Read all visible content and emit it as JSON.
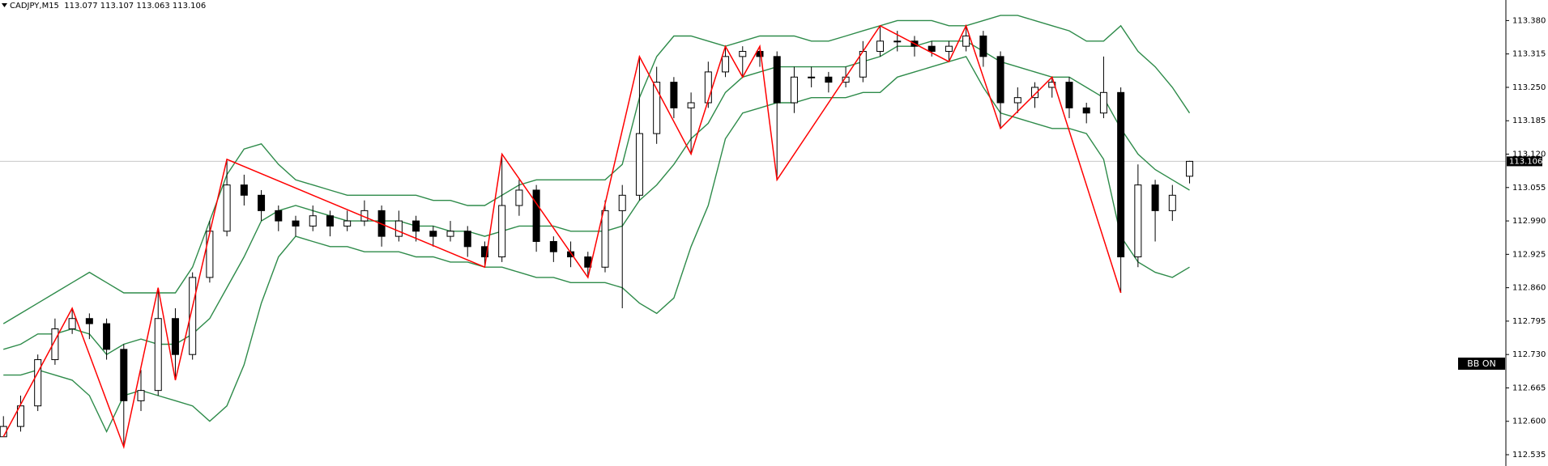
{
  "chart_data": {
    "type": "candlestick",
    "title": "CADJPY,M15  113.077 113.107 113.063 113.106",
    "button": "BB ON",
    "xlim": [
      -0.2,
      87.4
    ],
    "ylim": [
      112.513,
      113.42
    ],
    "yticks": [
      {
        "value": 113.38,
        "label": "113.380"
      },
      {
        "value": 113.315,
        "label": "113.315"
      },
      {
        "value": 113.25,
        "label": "113.250"
      },
      {
        "value": 113.185,
        "label": "113.185"
      },
      {
        "value": 113.12,
        "label": "113.120"
      },
      {
        "value": 113.055,
        "label": "113.055"
      },
      {
        "value": 112.99,
        "label": "112.990"
      },
      {
        "value": 112.925,
        "label": "112.925"
      },
      {
        "value": 112.86,
        "label": "112.860"
      },
      {
        "value": 112.795,
        "label": "112.795"
      },
      {
        "value": 112.73,
        "label": "112.730"
      },
      {
        "value": 112.665,
        "label": "112.665"
      },
      {
        "value": 112.6,
        "label": "112.600"
      },
      {
        "value": 112.535,
        "label": "112.535"
      }
    ],
    "current_price": 113.106,
    "open": [
      112.57,
      112.59,
      112.63,
      112.72,
      112.78,
      112.8,
      112.79,
      112.74,
      112.64,
      112.66,
      112.8,
      112.73,
      112.88,
      112.97,
      113.06,
      113.04,
      113.01,
      112.99,
      112.98,
      113.0,
      112.98,
      112.99,
      113.01,
      112.96,
      112.99,
      112.97,
      112.96,
      112.97,
      112.94,
      112.92,
      113.02,
      113.05,
      112.95,
      112.93,
      112.92,
      112.9,
      113.01,
      113.04,
      113.16,
      113.26,
      113.21,
      113.22,
      113.28,
      113.31,
      113.32,
      113.31,
      113.22,
      113.27,
      113.27,
      113.26,
      113.27,
      113.32,
      113.34,
      113.34,
      113.33,
      113.32,
      113.33,
      113.35,
      113.31,
      113.22,
      113.23,
      113.25,
      113.26,
      113.21,
      113.2,
      113.24,
      112.92,
      113.06,
      113.01,
      113.077
    ],
    "high": [
      112.61,
      112.65,
      112.73,
      112.8,
      112.82,
      112.81,
      112.8,
      112.75,
      112.7,
      112.86,
      112.82,
      112.89,
      112.99,
      113.11,
      113.08,
      113.05,
      113.02,
      113.0,
      113.02,
      113.01,
      113.01,
      113.03,
      113.02,
      113.01,
      113.0,
      112.98,
      112.99,
      112.98,
      112.95,
      113.12,
      113.07,
      113.06,
      112.96,
      112.95,
      112.93,
      113.03,
      113.06,
      113.31,
      113.29,
      113.27,
      113.24,
      113.3,
      113.33,
      113.33,
      113.33,
      113.32,
      113.29,
      113.29,
      113.28,
      113.29,
      113.34,
      113.37,
      113.36,
      113.35,
      113.34,
      113.34,
      113.37,
      113.36,
      113.32,
      113.25,
      113.26,
      113.27,
      113.27,
      113.22,
      113.31,
      113.25,
      113.1,
      113.07,
      113.06,
      113.107
    ],
    "low": [
      112.57,
      112.58,
      112.62,
      112.71,
      112.77,
      112.76,
      112.72,
      112.55,
      112.62,
      112.65,
      112.68,
      112.72,
      112.87,
      112.96,
      113.02,
      112.99,
      112.97,
      112.96,
      112.97,
      112.96,
      112.97,
      112.98,
      112.94,
      112.95,
      112.95,
      112.94,
      112.95,
      112.92,
      112.9,
      112.91,
      113.0,
      112.93,
      112.91,
      112.9,
      112.88,
      112.89,
      112.82,
      113.03,
      113.14,
      113.19,
      113.12,
      113.21,
      113.27,
      113.27,
      113.29,
      113.07,
      113.2,
      113.25,
      113.24,
      113.25,
      113.26,
      113.31,
      113.32,
      113.31,
      113.31,
      113.3,
      113.32,
      113.29,
      113.17,
      113.2,
      113.21,
      113.23,
      113.19,
      113.18,
      113.19,
      112.85,
      112.9,
      112.95,
      112.99,
      113.063
    ],
    "close": [
      112.59,
      112.63,
      112.72,
      112.78,
      112.8,
      112.79,
      112.74,
      112.64,
      112.66,
      112.8,
      112.73,
      112.88,
      112.97,
      113.06,
      113.04,
      113.01,
      112.99,
      112.98,
      113.0,
      112.98,
      112.99,
      113.01,
      112.96,
      112.99,
      112.97,
      112.96,
      112.97,
      112.94,
      112.92,
      113.02,
      113.05,
      112.95,
      112.93,
      112.92,
      112.9,
      113.01,
      113.04,
      113.16,
      113.26,
      113.21,
      113.22,
      113.28,
      113.31,
      113.32,
      113.31,
      113.22,
      113.27,
      113.27,
      113.26,
      113.27,
      113.32,
      113.34,
      113.34,
      113.33,
      113.32,
      113.33,
      113.35,
      113.31,
      113.22,
      113.23,
      113.25,
      113.26,
      113.21,
      113.2,
      113.24,
      112.92,
      113.06,
      113.01,
      113.04,
      113.106
    ],
    "bands": [
      {
        "color": "#2e8b4a",
        "values": [
          112.79,
          112.81,
          112.83,
          112.85,
          112.87,
          112.89,
          112.87,
          112.85,
          112.85,
          112.85,
          112.85,
          112.9,
          112.99,
          113.08,
          113.13,
          113.14,
          113.1,
          113.07,
          113.06,
          113.05,
          113.04,
          113.04,
          113.04,
          113.04,
          113.04,
          113.03,
          113.03,
          113.02,
          113.02,
          113.04,
          113.06,
          113.07,
          113.07,
          113.07,
          113.07,
          113.07,
          113.1,
          113.23,
          113.31,
          113.35,
          113.35,
          113.34,
          113.33,
          113.34,
          113.35,
          113.35,
          113.35,
          113.34,
          113.34,
          113.35,
          113.36,
          113.37,
          113.38,
          113.38,
          113.38,
          113.37,
          113.37,
          113.38,
          113.39,
          113.39,
          113.38,
          113.37,
          113.36,
          113.34,
          113.34,
          113.37,
          113.32,
          113.29,
          113.25,
          113.2
        ]
      },
      {
        "color": "#2e8b4a",
        "values": [
          112.74,
          112.75,
          112.77,
          112.77,
          112.78,
          112.77,
          112.73,
          112.75,
          112.76,
          112.75,
          112.75,
          112.77,
          112.8,
          112.86,
          112.92,
          112.99,
          113.01,
          113.02,
          113.01,
          113.0,
          112.99,
          112.99,
          112.99,
          112.99,
          112.98,
          112.98,
          112.97,
          112.97,
          112.96,
          112.97,
          112.98,
          112.98,
          112.98,
          112.97,
          112.97,
          112.97,
          112.98,
          113.03,
          113.06,
          113.1,
          113.15,
          113.18,
          113.24,
          113.27,
          113.28,
          113.29,
          113.29,
          113.29,
          113.29,
          113.29,
          113.3,
          113.31,
          113.33,
          113.33,
          113.34,
          113.34,
          113.34,
          113.32,
          113.3,
          113.29,
          113.28,
          113.27,
          113.27,
          113.25,
          113.23,
          113.17,
          113.12,
          113.09,
          113.07,
          113.05
        ]
      },
      {
        "color": "#2e8b4a",
        "values": [
          112.69,
          112.69,
          112.7,
          112.69,
          112.68,
          112.65,
          112.58,
          112.65,
          112.66,
          112.65,
          112.64,
          112.63,
          112.6,
          112.63,
          112.71,
          112.83,
          112.92,
          112.96,
          112.95,
          112.94,
          112.94,
          112.93,
          112.93,
          112.93,
          112.92,
          112.92,
          112.91,
          112.91,
          112.9,
          112.9,
          112.89,
          112.88,
          112.88,
          112.87,
          112.87,
          112.87,
          112.86,
          112.83,
          112.81,
          112.84,
          112.94,
          113.02,
          113.15,
          113.2,
          113.21,
          113.22,
          113.22,
          113.23,
          113.23,
          113.23,
          113.24,
          113.24,
          113.27,
          113.28,
          113.29,
          113.3,
          113.31,
          113.25,
          113.2,
          113.19,
          113.18,
          113.17,
          113.17,
          113.16,
          113.11,
          112.96,
          112.91,
          112.89,
          112.88,
          112.9
        ]
      }
    ],
    "zigzag": {
      "color": "#ff0000",
      "x": [
        0,
        4,
        7,
        9,
        10,
        13,
        28,
        29,
        34,
        37,
        40,
        42,
        43,
        44,
        45,
        51,
        55,
        56,
        58,
        61,
        65
      ],
      "values": [
        112.57,
        112.82,
        112.55,
        112.86,
        112.68,
        113.11,
        112.9,
        113.12,
        112.88,
        113.31,
        113.12,
        113.33,
        113.27,
        113.33,
        113.07,
        113.37,
        113.3,
        113.37,
        113.17,
        113.27,
        112.85
      ]
    }
  }
}
